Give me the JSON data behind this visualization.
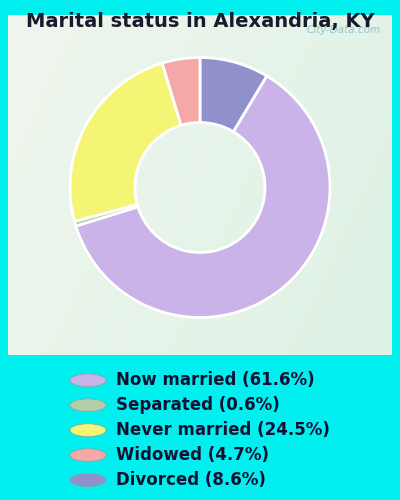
{
  "title": "Marital status in Alexandria, KY",
  "slices": [
    61.6,
    0.6,
    24.5,
    4.7,
    8.6
  ],
  "labels": [
    "Now married (61.6%)",
    "Separated (0.6%)",
    "Never married (24.5%)",
    "Widowed (4.7%)",
    "Divorced (8.6%)"
  ],
  "colors": [
    "#c9b3e8",
    "#b0ceaa",
    "#f5f575",
    "#f4a8a8",
    "#9090cc"
  ],
  "bg_cyan": "#00f0f0",
  "bg_chart_gradient_start": "#d0ede0",
  "bg_chart_gradient_end": "#e8f5ee",
  "title_fontsize": 14,
  "legend_fontsize": 12,
  "watermark": "City-Data.com",
  "pie_order": [
    4,
    0,
    1,
    2,
    3
  ],
  "donut_width": 0.5
}
